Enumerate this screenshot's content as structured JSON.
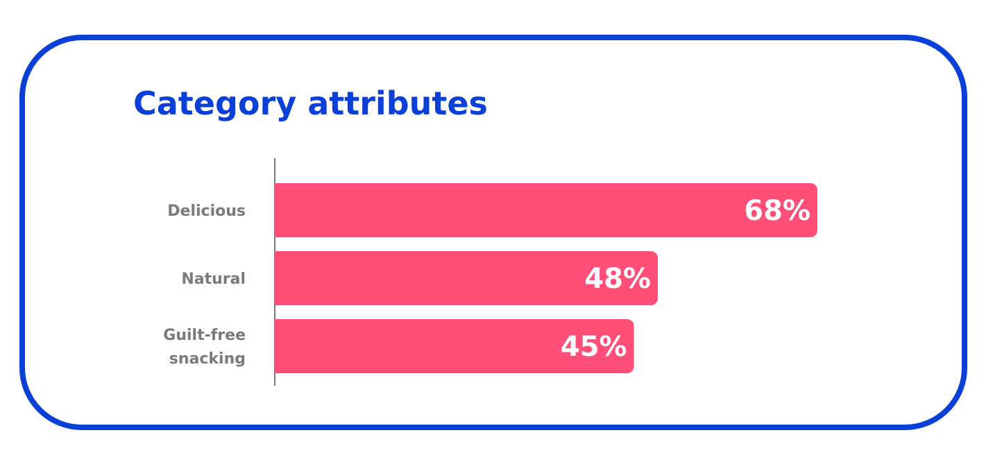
{
  "chart_data": {
    "type": "bar",
    "orientation": "horizontal",
    "title": "Category attributes",
    "categories": [
      "Delicious",
      "Natural",
      "Guilt-free snacking"
    ],
    "category_lines": [
      [
        "Delicious"
      ],
      [
        "Natural"
      ],
      [
        "Guilt-free",
        "snacking"
      ]
    ],
    "values": [
      68,
      48,
      45
    ],
    "data_labels": [
      "68%",
      "48%",
      "45%"
    ],
    "unit": "%",
    "xlim": [
      0,
      100
    ],
    "grid": false,
    "legend": "none",
    "bar_color": "#ff4f79",
    "title_color": "#0a3fd8",
    "frame_color": "#0a3fd8"
  }
}
